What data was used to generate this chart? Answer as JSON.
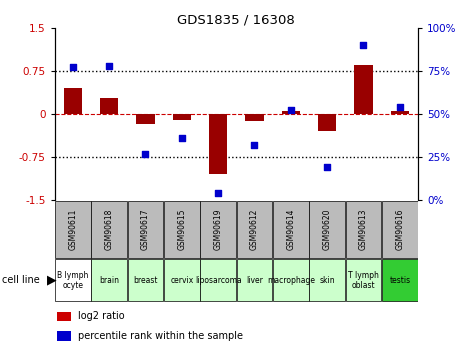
{
  "title": "GDS1835 / 16308",
  "gsm_labels": [
    "GSM90611",
    "GSM90618",
    "GSM90617",
    "GSM90615",
    "GSM90619",
    "GSM90612",
    "GSM90614",
    "GSM90620",
    "GSM90613",
    "GSM90616"
  ],
  "cell_types": [
    "B lymph\nocyte",
    "brain",
    "breast",
    "cervix",
    "liposarcoma\n",
    "liver",
    "macrophage",
    "skin",
    "T lymph\noblast",
    "testis"
  ],
  "cell_bg_colors": [
    "#ffffff",
    "#ccffcc",
    "#ccffcc",
    "#ccffcc",
    "#ccffcc",
    "#ccffcc",
    "#ccffcc",
    "#ccffcc",
    "#ccffcc",
    "#33cc33"
  ],
  "log2_ratios": [
    0.45,
    0.28,
    -0.18,
    -0.1,
    -1.05,
    -0.12,
    0.05,
    -0.3,
    0.85,
    0.05
  ],
  "percentile_ranks": [
    77,
    78,
    27,
    36,
    4,
    32,
    52,
    19,
    90,
    54
  ],
  "ylim_left": [
    -1.5,
    1.5
  ],
  "ylim_right": [
    0,
    100
  ],
  "yticks_left": [
    -1.5,
    -0.75,
    0,
    0.75,
    1.5
  ],
  "yticks_right": [
    0,
    25,
    50,
    75,
    100
  ],
  "bar_color": "#990000",
  "dot_color": "#0000cc",
  "hline_color": "#cc0000",
  "dotted_color": "#000000",
  "gsm_bg_color": "#bbbbbb",
  "legend_square_red": "#cc0000",
  "legend_square_blue": "#0000cc"
}
